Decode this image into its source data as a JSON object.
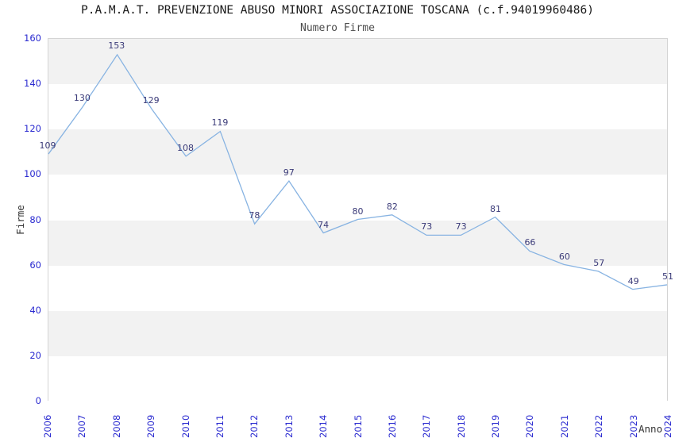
{
  "chart_data": {
    "type": "line",
    "title": "P.A.M.A.T. PREVENZIONE ABUSO MINORI ASSOCIAZIONE TOSCANA (c.f.94019960486)",
    "subtitle": "Numero Firme",
    "xlabel": "Anno",
    "ylabel": "Firme",
    "categories": [
      "2006",
      "2007",
      "2008",
      "2009",
      "2010",
      "2011",
      "2012",
      "2013",
      "2014",
      "2015",
      "2016",
      "2017",
      "2018",
      "2019",
      "2020",
      "2021",
      "2022",
      "2023",
      "2024"
    ],
    "values": [
      109,
      130,
      153,
      129,
      108,
      119,
      78,
      97,
      74,
      80,
      82,
      73,
      73,
      81,
      66,
      60,
      57,
      49,
      51
    ],
    "ylim": [
      0,
      160
    ],
    "yticks": [
      0,
      20,
      40,
      60,
      80,
      100,
      120,
      140,
      160
    ],
    "legend": "none",
    "grid": "alternating-horizontal-bands",
    "data_labels": "shown-above-points",
    "colors": {
      "line": "#87b3e2",
      "data_label": "#3a3a78",
      "tick_label": "#2b2bd0",
      "band_gray": "#f2f2f2",
      "band_white": "#ffffff",
      "plot_border": "#d4d4d4",
      "title": "#1a1a1a",
      "subtitle": "#4d4d4d",
      "axis_label": "#333333"
    }
  }
}
